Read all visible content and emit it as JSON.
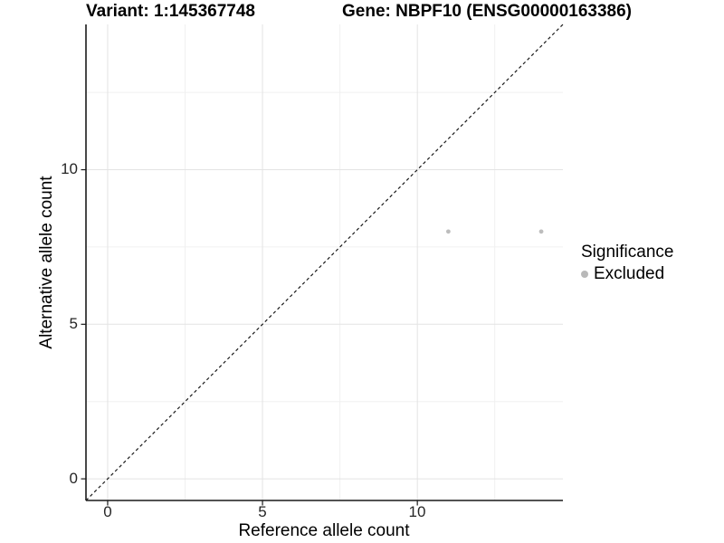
{
  "chart_data": {
    "type": "scatter",
    "title_left": "Variant: 1:145367748",
    "title_right": "Gene: NBPF10 (ENSG00000163386)",
    "xlabel": "Reference allele count",
    "ylabel": "Alternative allele count",
    "xlim": [
      -0.7,
      14.7
    ],
    "ylim": [
      -0.7,
      14.7
    ],
    "x_ticks": [
      0,
      5,
      10
    ],
    "y_ticks": [
      0,
      5,
      10
    ],
    "x_minor_ticks": [
      2.5,
      7.5,
      12.5
    ],
    "y_minor_ticks": [
      2.5,
      7.5,
      12.5
    ],
    "grid": "major+minor",
    "legend_position": "right",
    "series": [
      {
        "name": "Excluded",
        "marker": "circle",
        "color": "#bdbdbd",
        "points": [
          {
            "x": 11,
            "y": 8
          },
          {
            "x": 14,
            "y": 8
          }
        ]
      }
    ],
    "reference_line": {
      "slope": 1,
      "intercept": 0,
      "style": "dashed",
      "color": "#1a1a1a"
    },
    "legend": {
      "title": "Significance",
      "entries": [
        {
          "label": "Excluded",
          "color": "#b9b9b9"
        }
      ]
    }
  },
  "colors": {
    "background": "#ffffff",
    "grid_major": "#e3e3e3",
    "grid_minor": "#f0f0f0",
    "axis": "#1a1a1a",
    "tick_label": "#262626",
    "point": "#bdbdbd"
  }
}
